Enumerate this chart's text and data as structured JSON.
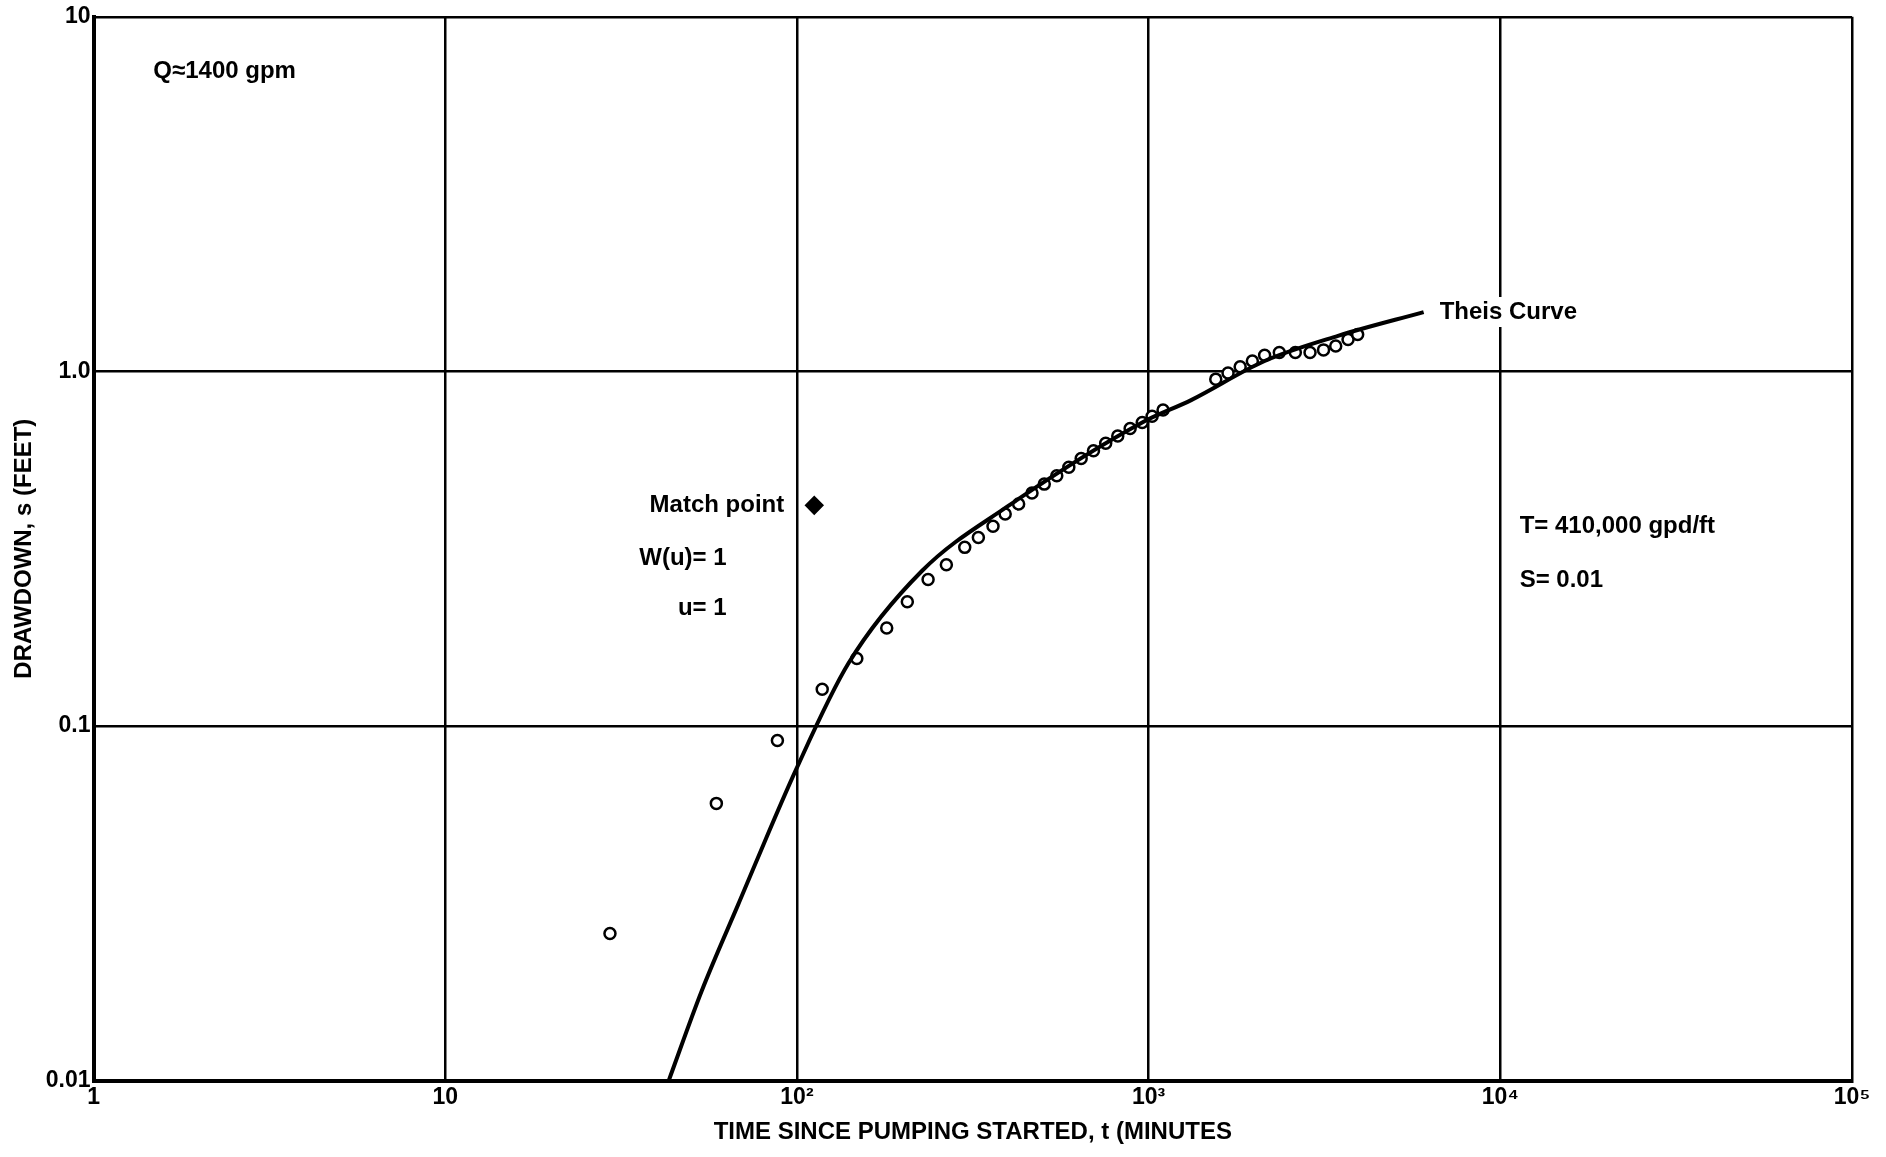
{
  "chart_data": {
    "type": "scatter",
    "xlabel": "TIME SINCE PUMPING STARTED, t (MINUTES",
    "ylabel": "DRAWDOWN, s (FEET)",
    "log": "xy",
    "grid": true,
    "legend": false,
    "xlim": [
      1,
      100000
    ],
    "ylim": [
      0.01,
      10
    ],
    "xticks": [
      1,
      10,
      {
        "value": 100,
        "label": "10²"
      },
      {
        "value": 1000,
        "label": "10³"
      },
      {
        "value": 10000,
        "label": "10⁴"
      },
      {
        "value": 100000,
        "label": "10⁵"
      }
    ],
    "yticks": [
      0.01,
      0.1,
      {
        "value": 1,
        "label": "1.0"
      },
      10
    ],
    "series": [
      {
        "type": "line",
        "name": "Theis Curve",
        "color": "#000000",
        "marker": "none",
        "x": [
          43.2,
          53.6,
          68,
          100,
          140,
          227,
          397,
          959,
          1321,
          2137,
          3456,
          6053
        ],
        "values": [
          0.01,
          0.0179,
          0.0313,
          0.0763,
          0.15,
          0.274,
          0.416,
          0.718,
          0.83,
          1.07,
          1.26,
          1.47
        ]
      },
      {
        "type": "scatter",
        "color": "#000000",
        "marker": "circle",
        "x": [
          29.4,
          59,
          88,
          118,
          148,
          180,
          206,
          236,
          266,
          300,
          328,
          361,
          391,
          427,
          466,
          505,
          548,
          593,
          643,
          697,
          755,
          817,
          886,
          959,
          1023,
          1099,
          1552,
          1682,
          1821,
          1972,
          2137,
          2353,
          2613,
          2877,
          3143,
          3404,
          3690,
          3930
        ],
        "values": [
          0.026,
          0.0605,
          0.091,
          0.127,
          0.155,
          0.189,
          0.224,
          0.259,
          0.285,
          0.319,
          0.34,
          0.366,
          0.396,
          0.423,
          0.454,
          0.481,
          0.508,
          0.537,
          0.568,
          0.597,
          0.627,
          0.657,
          0.69,
          0.718,
          0.747,
          0.778,
          0.951,
          0.99,
          1.03,
          1.07,
          1.11,
          1.13,
          1.13,
          1.13,
          1.15,
          1.18,
          1.23,
          1.27
        ]
      },
      {
        "type": "scatter",
        "color": "#000000",
        "marker": "diamond",
        "x": [
          112
        ],
        "values": [
          0.419
        ]
      }
    ],
    "annotations": [
      "Q≈1400 gpm",
      {
        "text": "Match point",
        "x": 112,
        "y": 0.419
      },
      "W(u)= 1",
      "u= 1",
      "T= 410,000 gpd/ft",
      "S= 0.01"
    ]
  }
}
